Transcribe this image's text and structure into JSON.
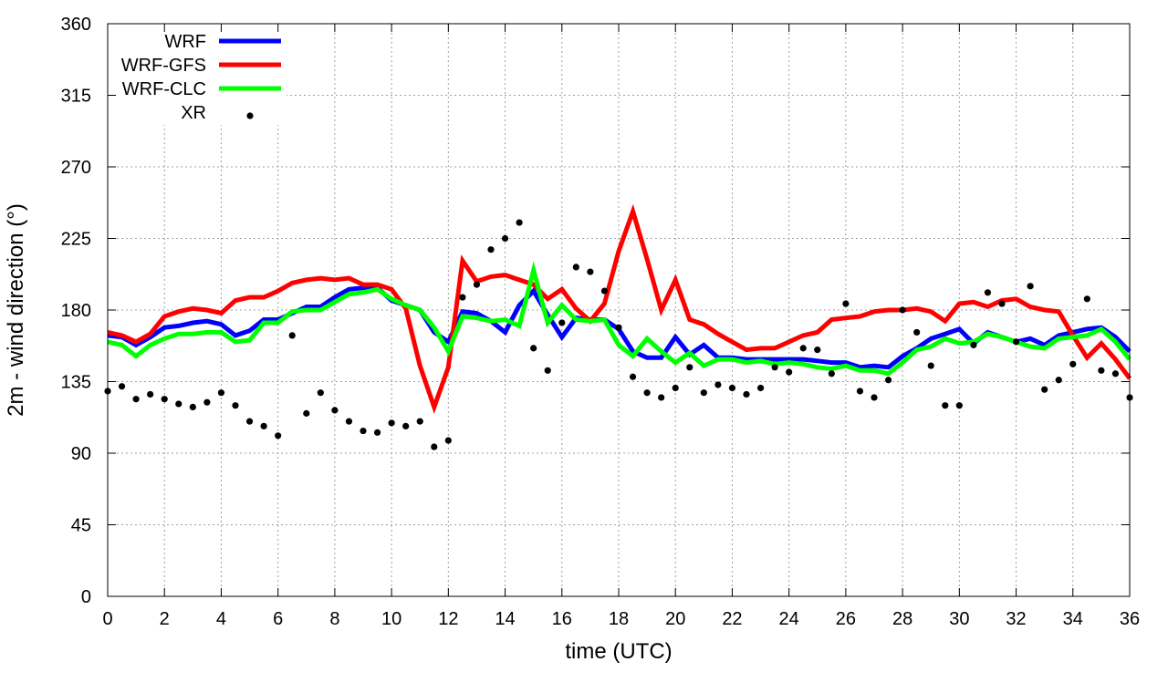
{
  "chart_data": {
    "type": "line",
    "title": "",
    "xlabel": "time (UTC)",
    "ylabel": "2m - wind direction (°)",
    "xlim": [
      0,
      36
    ],
    "ylim": [
      0,
      360
    ],
    "xticks": [
      0,
      2,
      4,
      6,
      8,
      10,
      12,
      14,
      16,
      18,
      20,
      22,
      24,
      26,
      28,
      30,
      32,
      34,
      36
    ],
    "yticks": [
      0,
      45,
      90,
      135,
      180,
      225,
      270,
      315,
      360
    ],
    "grid": true,
    "legend_position": "top-left",
    "x": [
      0,
      0.5,
      1,
      1.5,
      2,
      2.5,
      3,
      3.5,
      4,
      4.5,
      5,
      5.5,
      6,
      6.5,
      7,
      7.5,
      8,
      8.5,
      9,
      9.5,
      10,
      10.5,
      11,
      11.5,
      12,
      12.5,
      13,
      13.5,
      14,
      14.5,
      15,
      15.5,
      16,
      16.5,
      17,
      17.5,
      18,
      18.5,
      19,
      19.5,
      20,
      20.5,
      21,
      21.5,
      22,
      22.5,
      23,
      23.5,
      24,
      24.5,
      25,
      25.5,
      26,
      26.5,
      27,
      27.5,
      28,
      28.5,
      29,
      29.5,
      30,
      30.5,
      31,
      31.5,
      32,
      32.5,
      33,
      33.5,
      34,
      34.5,
      35,
      35.5,
      36
    ],
    "series": [
      {
        "name": "WRF",
        "color": "#0000ff",
        "style": "line",
        "values": [
          164,
          163,
          158,
          163,
          169,
          170,
          172,
          173,
          171,
          164,
          167,
          174,
          174,
          178,
          182,
          182,
          188,
          193,
          194,
          194,
          186,
          183,
          180,
          166,
          160,
          179,
          178,
          173,
          166,
          183,
          192,
          177,
          163,
          175,
          174,
          174,
          168,
          154,
          150,
          150,
          163,
          152,
          158,
          150,
          150,
          149,
          149,
          149,
          149,
          149,
          148,
          147,
          147,
          144,
          145,
          144,
          151,
          156,
          162,
          165,
          168,
          159,
          166,
          163,
          160,
          162,
          158,
          164,
          166,
          168,
          169,
          163,
          154
        ]
      },
      {
        "name": "WRF-GFS",
        "color": "#ff0000",
        "style": "line",
        "values": [
          166,
          164,
          160,
          165,
          176,
          179,
          181,
          180,
          178,
          186,
          188,
          188,
          192,
          197,
          199,
          200,
          199,
          200,
          196,
          196,
          193,
          181,
          145,
          119,
          144,
          211,
          198,
          201,
          202,
          199,
          196,
          187,
          193,
          181,
          173,
          184,
          217,
          242,
          212,
          180,
          199,
          174,
          171,
          165,
          160,
          155,
          156,
          156,
          160,
          164,
          166,
          174,
          175,
          176,
          179,
          180,
          180,
          181,
          179,
          173,
          184,
          185,
          182,
          186,
          187,
          182,
          180,
          179,
          164,
          150,
          159,
          149,
          137
        ]
      },
      {
        "name": "WRF-CLC",
        "color": "#00ff00",
        "style": "line",
        "values": [
          160,
          158,
          151,
          158,
          162,
          165,
          165,
          166,
          166,
          160,
          161,
          172,
          172,
          179,
          180,
          180,
          185,
          190,
          191,
          193,
          187,
          183,
          180,
          169,
          154,
          176,
          175,
          173,
          174,
          170,
          205,
          172,
          183,
          174,
          173,
          174,
          158,
          151,
          162,
          154,
          147,
          153,
          145,
          149,
          149,
          147,
          148,
          146,
          147,
          146,
          144,
          143,
          145,
          142,
          142,
          140,
          147,
          155,
          157,
          162,
          159,
          160,
          165,
          163,
          160,
          157,
          156,
          162,
          163,
          164,
          168,
          160,
          149
        ]
      },
      {
        "name": "XR",
        "color": "#000000",
        "style": "points",
        "values": [
          129,
          132,
          124,
          127,
          124,
          121,
          119,
          122,
          128,
          120,
          110,
          107,
          101,
          164,
          115,
          128,
          117,
          110,
          104,
          103,
          109,
          107,
          110,
          94,
          98,
          188,
          196,
          218,
          225,
          235,
          156,
          142,
          172,
          207,
          204,
          192,
          169,
          138,
          128,
          125,
          131,
          144,
          128,
          133,
          131,
          127,
          131,
          144,
          141,
          156,
          155,
          140,
          184,
          129,
          125,
          136,
          180,
          166,
          145,
          120,
          120,
          158,
          191,
          184,
          160,
          195,
          130,
          136,
          146,
          187,
          142,
          140,
          125
        ]
      }
    ],
    "legend": [
      "WRF",
      "WRF-GFS",
      "WRF-CLC",
      "XR"
    ]
  }
}
